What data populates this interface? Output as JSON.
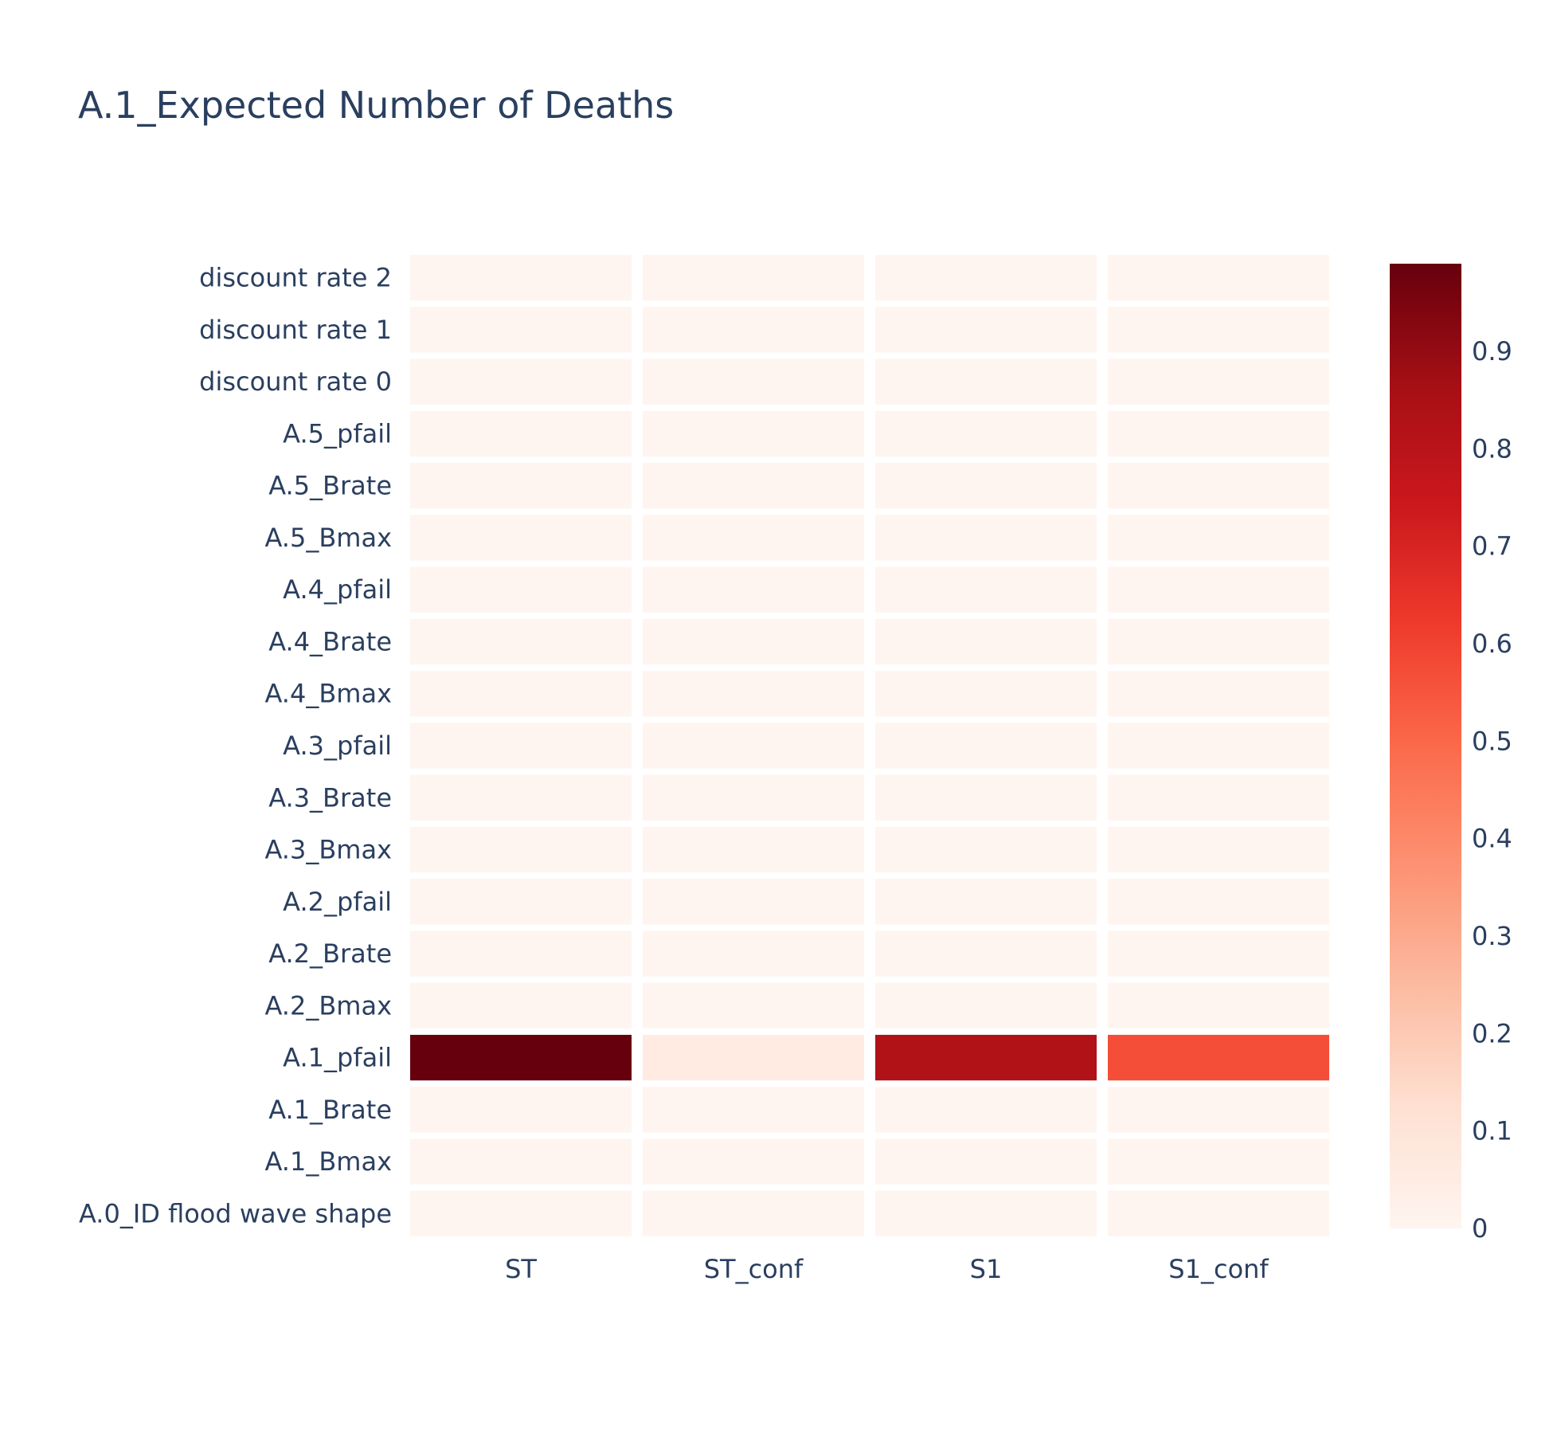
{
  "chart_data": {
    "type": "heatmap",
    "title": "A.1_Expected Number of Deaths",
    "x": [
      "ST",
      "ST_conf",
      "S1",
      "S1_conf"
    ],
    "y": [
      "A.0_ID flood wave shape",
      "A.1_Bmax",
      "A.1_Brate",
      "A.1_pfail",
      "A.2_Bmax",
      "A.2_Brate",
      "A.2_pfail",
      "A.3_Bmax",
      "A.3_Brate",
      "A.3_pfail",
      "A.4_Bmax",
      "A.4_Brate",
      "A.4_pfail",
      "A.5_Bmax",
      "A.5_Brate",
      "A.5_pfail",
      "discount rate 0",
      "discount rate 1",
      "discount rate 2"
    ],
    "z": [
      [
        0.0,
        0.0,
        0.0,
        0.0
      ],
      [
        0.0,
        0.0,
        0.0,
        0.0
      ],
      [
        0.0,
        0.0,
        0.0,
        0.0
      ],
      [
        0.99,
        0.06,
        0.83,
        0.57
      ],
      [
        0.0,
        0.0,
        0.0,
        0.0
      ],
      [
        0.0,
        0.0,
        0.0,
        0.0
      ],
      [
        0.0,
        0.0,
        0.0,
        0.0
      ],
      [
        0.0,
        0.0,
        0.0,
        0.0
      ],
      [
        0.0,
        0.0,
        0.0,
        0.0
      ],
      [
        0.0,
        0.0,
        0.0,
        0.0
      ],
      [
        0.0,
        0.0,
        0.0,
        0.0
      ],
      [
        0.0,
        0.0,
        0.0,
        0.0
      ],
      [
        0.0,
        0.0,
        0.0,
        0.0
      ],
      [
        0.0,
        0.0,
        0.0,
        0.0
      ],
      [
        0.0,
        0.0,
        0.0,
        0.0
      ],
      [
        0.0,
        0.0,
        0.0,
        0.0
      ],
      [
        0.0,
        0.0,
        0.0,
        0.0
      ],
      [
        0.0,
        0.0,
        0.0,
        0.0
      ],
      [
        0.0,
        0.0,
        0.0,
        0.0
      ]
    ],
    "zmin": 0,
    "zmax": 0.99,
    "colorscale": "Reds",
    "colorbar_ticks": [
      0,
      0.1,
      0.2,
      0.3,
      0.4,
      0.5,
      0.6,
      0.7,
      0.8,
      0.9
    ],
    "colorbar_tick_labels": [
      "0",
      "0.1",
      "0.2",
      "0.3",
      "0.4",
      "0.5",
      "0.6",
      "0.7",
      "0.8",
      "0.9"
    ],
    "xlabel": "",
    "ylabel": "",
    "grid": false,
    "legend": "colorbar-right"
  }
}
